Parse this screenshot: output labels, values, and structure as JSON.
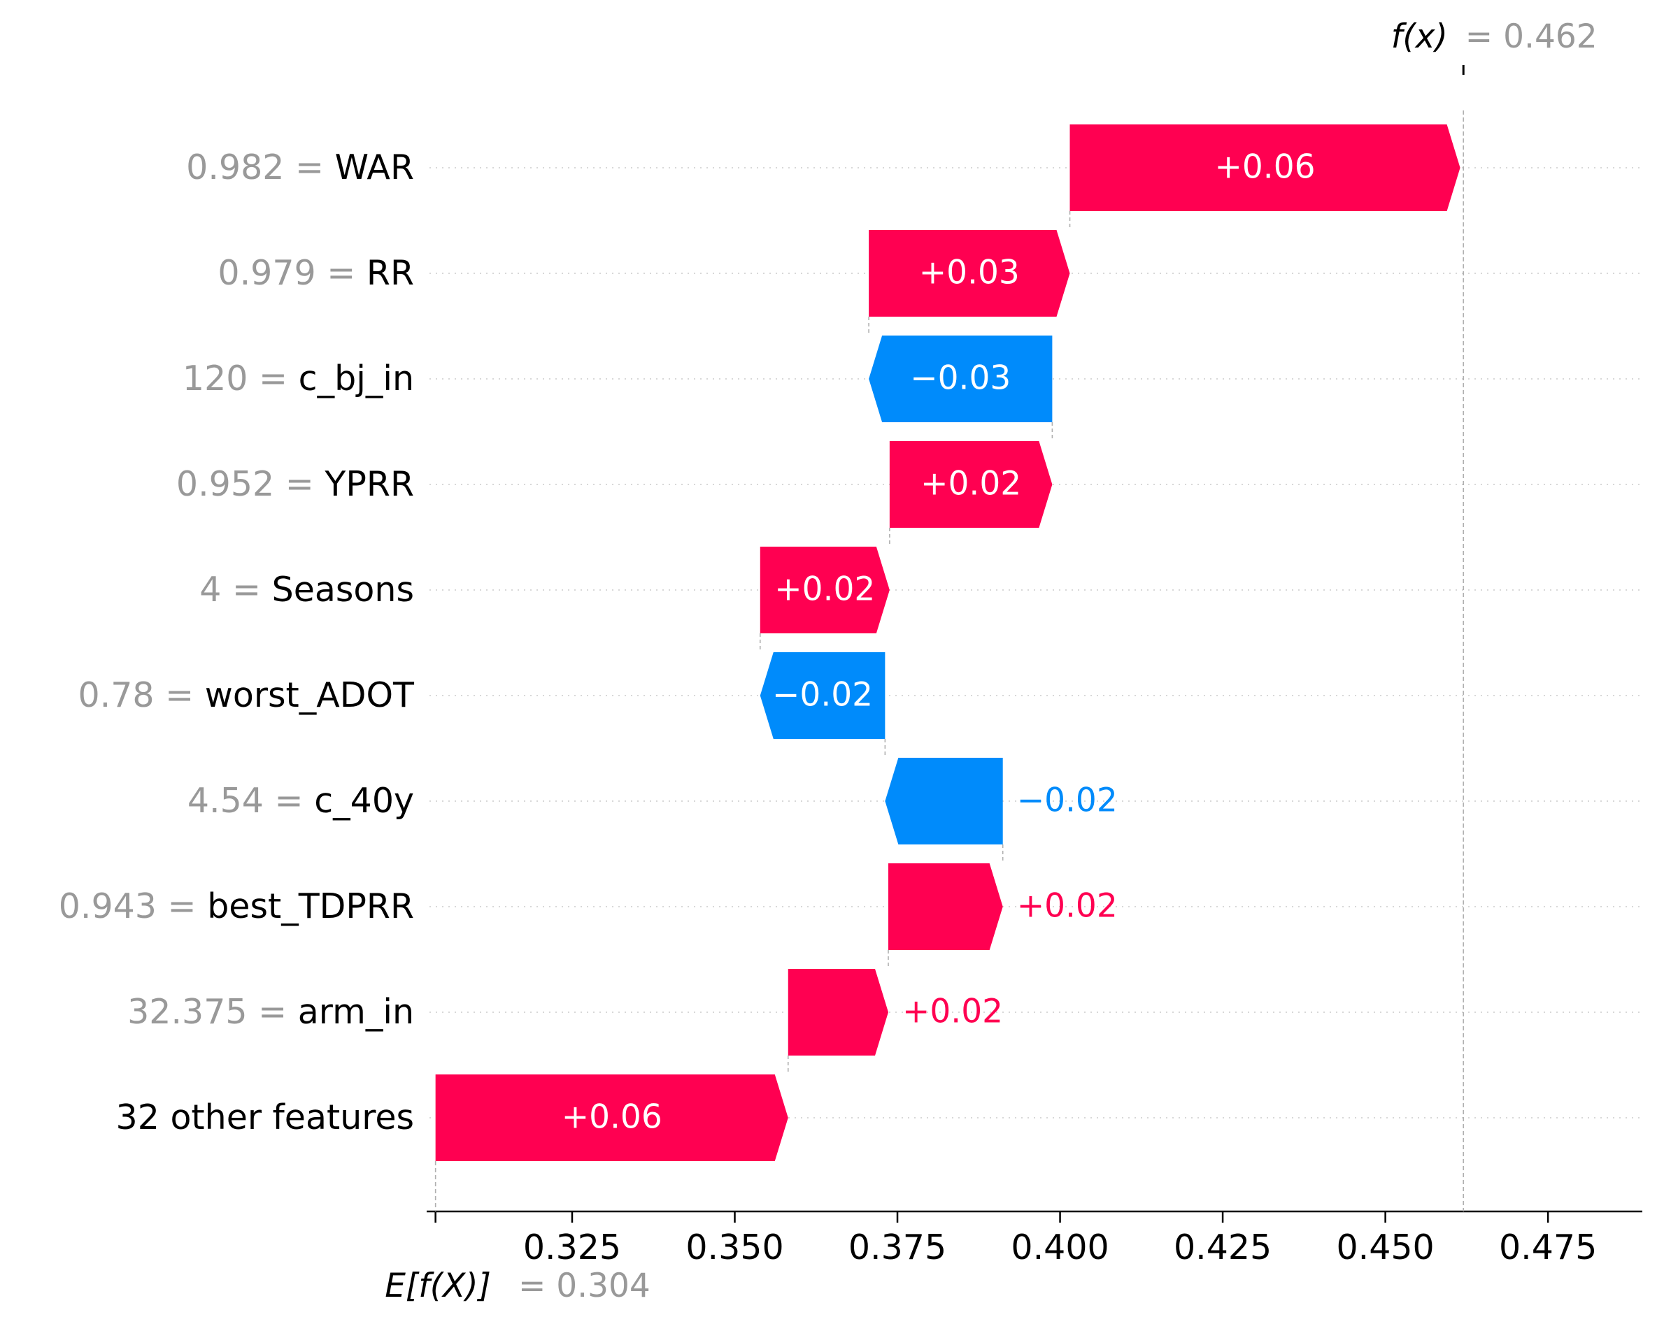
{
  "chart_data": {
    "type": "waterfall",
    "title": "",
    "base_value": 0.304,
    "base_label": "E[f(X)]",
    "base_value_text": "= 0.304",
    "output_value": 0.462,
    "output_label": "f(x)",
    "output_value_text": "= 0.462",
    "xlim": [
      0.3035,
      0.4895
    ],
    "xticks": [
      0.325,
      0.35,
      0.375,
      0.4,
      0.425,
      0.45,
      0.475
    ],
    "xtick_labels": [
      "0.325",
      "0.350",
      "0.375",
      "0.400",
      "0.425",
      "0.450",
      "0.475"
    ],
    "features": [
      {
        "value": "0.982",
        "name": "WAR",
        "start": 0.4015,
        "end": 0.4615,
        "label": "+0.06"
      },
      {
        "value": "0.979",
        "name": "RR",
        "start": 0.3706,
        "end": 0.4015,
        "label": "+0.03"
      },
      {
        "value": "120",
        "name": "c_bj_in",
        "start": 0.3988,
        "end": 0.3706,
        "label": "−0.03"
      },
      {
        "value": "0.952",
        "name": "YPRR",
        "start": 0.3738,
        "end": 0.3988,
        "label": "+0.02"
      },
      {
        "value": "4",
        "name": "Seasons",
        "start": 0.3539,
        "end": 0.3738,
        "label": "+0.02"
      },
      {
        "value": "0.78",
        "name": "worst_ADOT",
        "start": 0.3731,
        "end": 0.3539,
        "label": "−0.02"
      },
      {
        "value": "4.54",
        "name": "c_40y",
        "start": 0.3912,
        "end": 0.3731,
        "label": "−0.02"
      },
      {
        "value": "0.943",
        "name": "best_TDPRR",
        "start": 0.3736,
        "end": 0.3912,
        "label": "+0.02"
      },
      {
        "value": "32.375",
        "name": "arm_in",
        "start": 0.3582,
        "end": 0.3736,
        "label": "+0.02"
      },
      {
        "value": "",
        "name": "32 other features",
        "start": 0.304,
        "end": 0.3582,
        "label": "+0.06"
      }
    ],
    "colors": {
      "positive": "#ff0051",
      "negative": "#008bfb",
      "value_text": "#999999",
      "label_text": "#000000",
      "inner_text": "#ffffff"
    }
  }
}
